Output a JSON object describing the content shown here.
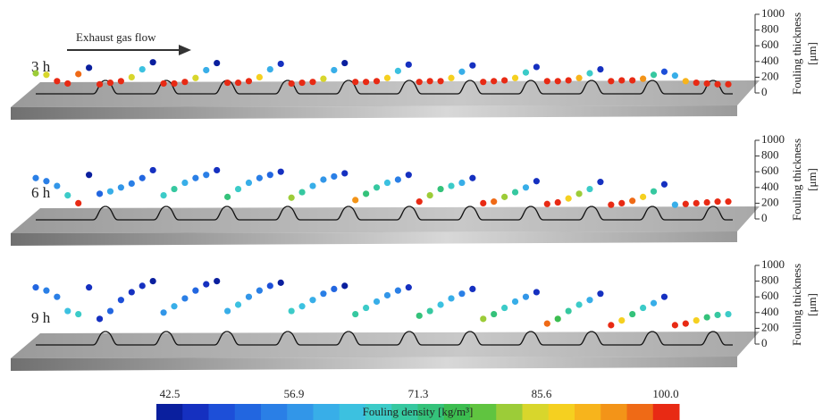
{
  "annotation": "Exhaust gas flow",
  "colorbar": {
    "label": "Fouling density [kg/m³]",
    "range": [
      42.5,
      100
    ],
    "ticks": [
      42.5,
      56.9,
      71.3,
      85.6,
      {
        "value": 100,
        "label": "100.0"
      }
    ],
    "colors": [
      "#0a1f9e",
      "#1530c0",
      "#1d4fd8",
      "#2266e0",
      "#2a7fe6",
      "#3296e8",
      "#38aee8",
      "#3cc1e0",
      "#3ccbc8",
      "#36c8a0",
      "#34c27a",
      "#3cbd50",
      "#60c440",
      "#9ccc38",
      "#d8d62c",
      "#f5d020",
      "#f7b41c",
      "#f39418",
      "#ef6a16",
      "#e82a14"
    ]
  },
  "chart_data": [
    {
      "type": "scatter",
      "title": "3 h",
      "y_label": [
        "Fouling thickness",
        "[μm]"
      ],
      "ylim": [
        0,
        1000
      ],
      "yticks": [
        0,
        200,
        400,
        600,
        800,
        1000
      ],
      "values": [
        250,
        230,
        150,
        120,
        240,
        320,
        110,
        130,
        150,
        200,
        300,
        390,
        120,
        120,
        140,
        190,
        290,
        380,
        130,
        130,
        150,
        200,
        300,
        370,
        120,
        130,
        140,
        180,
        290,
        380,
        140,
        140,
        150,
        190,
        280,
        360,
        140,
        150,
        150,
        190,
        270,
        350,
        140,
        150,
        160,
        190,
        260,
        330,
        150,
        150,
        160,
        190,
        250,
        300,
        150,
        160,
        160,
        180,
        230,
        270,
        220,
        150,
        130,
        120,
        110,
        110
      ],
      "density": [
        80,
        85,
        100,
        100,
        96,
        44,
        100,
        100,
        100,
        85,
        65,
        45,
        100,
        100,
        98,
        84,
        62,
        45,
        100,
        100,
        100,
        86,
        60,
        46,
        100,
        100,
        100,
        85,
        62,
        45,
        100,
        100,
        100,
        88,
        64,
        46,
        100,
        100,
        100,
        86,
        62,
        46,
        100,
        100,
        100,
        88,
        66,
        46,
        100,
        100,
        100,
        90,
        68,
        48,
        100,
        100,
        100,
        92,
        70,
        50,
        60,
        90,
        100,
        100,
        100,
        100
      ]
    },
    {
      "type": "scatter",
      "title": "6 h",
      "y_label": [
        "Fouling thickness",
        "[μm]"
      ],
      "ylim": [
        0,
        1000
      ],
      "yticks": [
        0,
        200,
        400,
        600,
        800,
        1000
      ],
      "values": [
        520,
        480,
        420,
        300,
        200,
        560,
        320,
        350,
        400,
        450,
        520,
        620,
        300,
        380,
        460,
        520,
        560,
        620,
        280,
        380,
        460,
        520,
        560,
        600,
        270,
        340,
        420,
        500,
        540,
        580,
        240,
        320,
        400,
        460,
        500,
        560,
        220,
        300,
        380,
        420,
        460,
        520,
        200,
        220,
        280,
        340,
        400,
        480,
        190,
        210,
        260,
        320,
        380,
        470,
        180,
        200,
        230,
        280,
        350,
        440,
        180,
        190,
        200,
        210,
        220,
        220
      ],
      "density": [
        55,
        56,
        58,
        66,
        100,
        45,
        52,
        60,
        58,
        55,
        52,
        46,
        66,
        70,
        62,
        56,
        54,
        48,
        72,
        68,
        60,
        56,
        52,
        48,
        80,
        70,
        62,
        58,
        54,
        48,
        92,
        72,
        70,
        64,
        56,
        48,
        100,
        80,
        72,
        66,
        60,
        48,
        100,
        95,
        80,
        70,
        62,
        46,
        100,
        100,
        88,
        80,
        66,
        46,
        100,
        100,
        96,
        86,
        70,
        46,
        60,
        100,
        100,
        100,
        100,
        100
      ]
    },
    {
      "type": "scatter",
      "title": "9 h",
      "y_label": [
        "Fouling thickness",
        "[μm]"
      ],
      "ylim": [
        0,
        1000
      ],
      "yticks": [
        0,
        200,
        400,
        600,
        800,
        1000
      ],
      "values": [
        720,
        680,
        600,
        420,
        380,
        720,
        320,
        420,
        560,
        660,
        740,
        800,
        400,
        480,
        580,
        680,
        760,
        800,
        420,
        500,
        600,
        680,
        740,
        780,
        420,
        480,
        560,
        640,
        700,
        740,
        380,
        460,
        540,
        620,
        680,
        720,
        360,
        420,
        500,
        580,
        640,
        700,
        320,
        380,
        460,
        540,
        600,
        660,
        260,
        320,
        420,
        500,
        560,
        640,
        240,
        300,
        380,
        460,
        520,
        600,
        240,
        260,
        300,
        340,
        370,
        380
      ],
      "density": [
        52,
        54,
        56,
        64,
        66,
        48,
        48,
        52,
        50,
        48,
        46,
        45,
        58,
        62,
        56,
        52,
        48,
        45,
        62,
        64,
        58,
        54,
        50,
        45,
        66,
        64,
        60,
        56,
        52,
        45,
        70,
        66,
        62,
        58,
        54,
        46,
        72,
        70,
        64,
        60,
        56,
        46,
        80,
        72,
        68,
        62,
        58,
        46,
        96,
        76,
        70,
        66,
        60,
        46,
        100,
        86,
        72,
        68,
        62,
        48,
        100,
        100,
        86,
        74,
        70,
        68
      ]
    }
  ]
}
